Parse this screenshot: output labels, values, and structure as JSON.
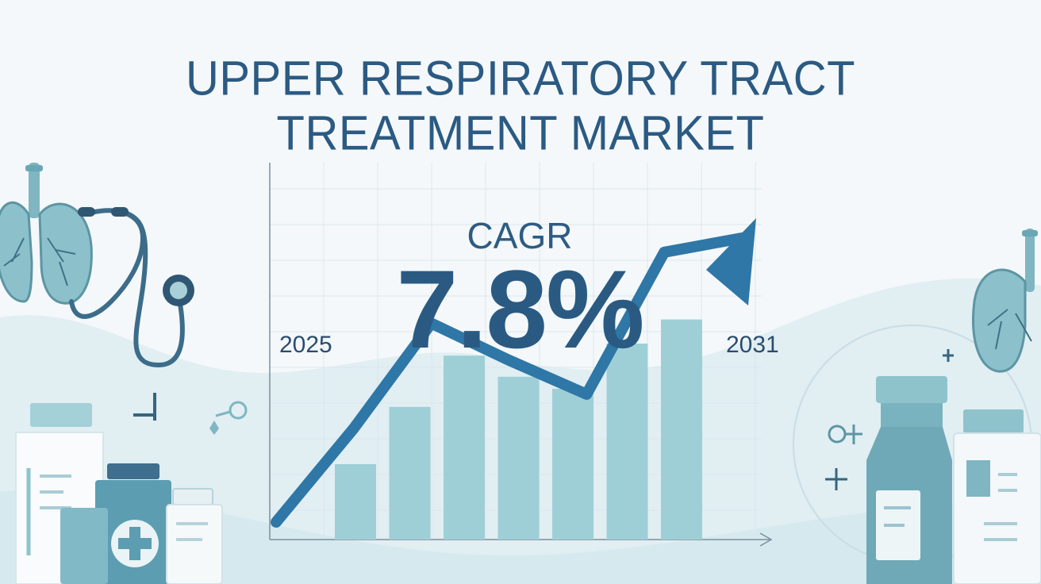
{
  "title": {
    "line1": "UPPER RESPIRATORY TRACT",
    "line2": "TREATMENT MARKET"
  },
  "cagr": {
    "label": "CAGR",
    "value": "7.8%"
  },
  "chart_data": {
    "type": "bar",
    "title": "UPPER RESPIRATORY TRACT TREATMENT MARKET",
    "x_start_label": "2025",
    "x_end_label": "2031",
    "annotation": "CAGR 7.8%",
    "values": [
      0.25,
      0.44,
      0.61,
      0.54,
      0.5,
      0.65,
      0.73
    ],
    "trend_line": [
      0.0,
      0.33,
      0.7,
      0.57,
      0.45,
      0.95,
      1.0
    ],
    "grid": true
  },
  "colors": {
    "title": "#2b5a83",
    "bar": "#9fcfd6",
    "arrow": "#2e77a6",
    "grid": "#dde7ed",
    "accent": "#8fc3cc"
  },
  "icons": [
    "lungs-icon",
    "stethoscope-icon",
    "medicine-bottle-icon",
    "pill-bottle-icon",
    "medical-cross-icon",
    "lungs-icon-right",
    "syringe-icon"
  ]
}
